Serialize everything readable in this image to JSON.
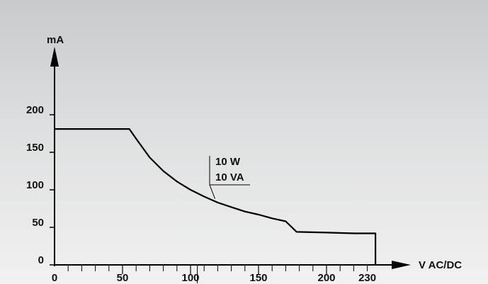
{
  "chart_data": {
    "type": "line",
    "title": "",
    "xlabel": "V AC/DC",
    "ylabel": "mA",
    "xlim": [
      0,
      240
    ],
    "ylim": [
      0,
      250
    ],
    "x_ticks": [
      0,
      50,
      100,
      150,
      200,
      230
    ],
    "y_ticks": [
      0,
      50,
      100,
      150,
      200
    ],
    "x_minor_step": 10,
    "grid": false,
    "series": [
      {
        "x": [
          0,
          55,
          60,
          70,
          80,
          90,
          100,
          110,
          120,
          130,
          140,
          150,
          160,
          170,
          178,
          200,
          220,
          236,
          236
        ],
        "y": [
          181,
          181,
          168,
          143,
          125,
          111,
          100,
          91,
          83,
          77,
          71,
          67,
          62,
          58,
          44,
          43,
          42,
          42,
          0
        ]
      }
    ],
    "annotations": [
      {
        "text": "10 W",
        "x": 118,
        "y": 88
      },
      {
        "text": "10 VA",
        "x": 118,
        "y": 88
      }
    ],
    "line_color": "#000000"
  }
}
